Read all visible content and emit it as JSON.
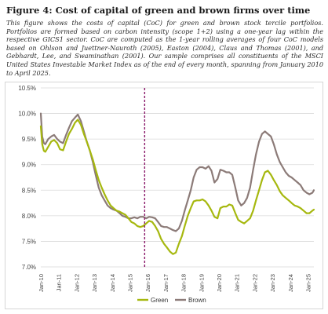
{
  "figure": {
    "title": "Figure 4: Cost of capital of green and brown firms over time",
    "caption": "This figure shows the costs of capital (CoC) for green and brown stock tercile portfolios. Portfolios are formed based on carbon intensity (scope 1+2) using a one-year lag within the respective GICS1 sector. CoC are computed as the 1-year rolling averages of four CoC models based on Ohlson and Juettner-Nauroth (2005), Easton (2004), Claus and Thomas (2001), and Gebhardt, Lee, and Swaminathan (2001). Our sample comprises all constituents of the MSCI United States Investable Market Index as of the end of every month, spanning from January 2010 to April 2025."
  },
  "chart_data": {
    "type": "line",
    "ylim": [
      7.0,
      10.5
    ],
    "yticks": [
      7.0,
      7.5,
      8.0,
      8.5,
      9.0,
      9.5,
      10.0,
      10.5
    ],
    "ytick_labels": [
      "7.0%",
      "7.5%",
      "8.0%",
      "8.5%",
      "9.0%",
      "9.5%",
      "10.0%",
      "10.5%"
    ],
    "xlim": [
      2010.0,
      2025.33
    ],
    "xticks": [
      2010,
      2011,
      2012,
      2013,
      2014,
      2015,
      2016,
      2017,
      2018,
      2019,
      2020,
      2021,
      2022,
      2023,
      2024,
      2025
    ],
    "xtick_labels": [
      "Jan-10",
      "Jan-11",
      "Jan-12",
      "Jan-13",
      "Jan-14",
      "Jan-15",
      "Jan-16",
      "Jan-17",
      "Jan-18",
      "Jan-19",
      "Jan-20",
      "Jan-21",
      "Jan-22",
      "Jan-23",
      "Jan-24",
      "Jan-25"
    ],
    "grid": "horizontal",
    "legend_position": "bottom-center",
    "vline": {
      "x": 2015.83,
      "color": "#8b1a6b",
      "style": "dashed"
    },
    "series": [
      {
        "name": "Green",
        "color": "#a6b80f",
        "x": [
          2010.0,
          2010.08,
          2010.17,
          2010.25,
          2010.42,
          2010.58,
          2010.75,
          2010.92,
          2011.08,
          2011.25,
          2011.42,
          2011.58,
          2011.75,
          2011.92,
          2012.08,
          2012.25,
          2012.42,
          2012.58,
          2012.75,
          2012.92,
          2013.08,
          2013.25,
          2013.42,
          2013.58,
          2013.75,
          2013.92,
          2014.08,
          2014.25,
          2014.42,
          2014.58,
          2014.75,
          2014.92,
          2015.08,
          2015.25,
          2015.42,
          2015.58,
          2015.75,
          2015.92,
          2016.08,
          2016.25,
          2016.42,
          2016.58,
          2016.75,
          2016.92,
          2017.08,
          2017.25,
          2017.42,
          2017.58,
          2017.75,
          2017.92,
          2018.08,
          2018.25,
          2018.42,
          2018.58,
          2018.75,
          2018.92,
          2019.08,
          2019.25,
          2019.42,
          2019.58,
          2019.75,
          2019.92,
          2020.08,
          2020.25,
          2020.42,
          2020.58,
          2020.75,
          2020.92,
          2021.08,
          2021.25,
          2021.42,
          2021.58,
          2021.75,
          2021.92,
          2022.08,
          2022.25,
          2022.42,
          2022.58,
          2022.75,
          2022.92,
          2023.08,
          2023.25,
          2023.42,
          2023.58,
          2023.75,
          2023.92,
          2024.08,
          2024.25,
          2024.42,
          2024.58,
          2024.75,
          2024.92,
          2025.08,
          2025.25,
          2025.33
        ],
        "values": [
          9.75,
          9.4,
          9.27,
          9.25,
          9.35,
          9.45,
          9.48,
          9.42,
          9.3,
          9.28,
          9.45,
          9.6,
          9.7,
          9.82,
          9.88,
          9.78,
          9.6,
          9.45,
          9.28,
          9.1,
          8.9,
          8.7,
          8.55,
          8.42,
          8.3,
          8.2,
          8.15,
          8.1,
          8.08,
          8.05,
          8.02,
          7.95,
          7.88,
          7.85,
          7.8,
          7.78,
          7.8,
          7.85,
          7.9,
          7.88,
          7.8,
          7.7,
          7.55,
          7.45,
          7.38,
          7.3,
          7.25,
          7.28,
          7.45,
          7.6,
          7.8,
          8.0,
          8.15,
          8.28,
          8.3,
          8.3,
          8.32,
          8.28,
          8.2,
          8.1,
          7.98,
          7.95,
          8.15,
          8.18,
          8.18,
          8.22,
          8.2,
          8.05,
          7.92,
          7.88,
          7.85,
          7.9,
          7.95,
          8.1,
          8.3,
          8.5,
          8.7,
          8.85,
          8.88,
          8.8,
          8.7,
          8.6,
          8.48,
          8.4,
          8.35,
          8.3,
          8.25,
          8.2,
          8.18,
          8.15,
          8.1,
          8.05,
          8.05,
          8.1,
          8.12
        ]
      },
      {
        "name": "Brown",
        "color": "#8c7b78",
        "x": [
          2010.0,
          2010.08,
          2010.17,
          2010.25,
          2010.42,
          2010.58,
          2010.75,
          2010.92,
          2011.08,
          2011.25,
          2011.42,
          2011.58,
          2011.75,
          2011.92,
          2012.08,
          2012.25,
          2012.42,
          2012.58,
          2012.75,
          2012.92,
          2013.08,
          2013.25,
          2013.42,
          2013.58,
          2013.75,
          2013.92,
          2014.08,
          2014.25,
          2014.42,
          2014.58,
          2014.75,
          2014.92,
          2015.08,
          2015.25,
          2015.42,
          2015.58,
          2015.75,
          2015.92,
          2016.08,
          2016.25,
          2016.42,
          2016.58,
          2016.75,
          2016.92,
          2017.08,
          2017.25,
          2017.42,
          2017.58,
          2017.75,
          2017.92,
          2018.08,
          2018.25,
          2018.42,
          2018.58,
          2018.75,
          2018.92,
          2019.08,
          2019.25,
          2019.42,
          2019.58,
          2019.75,
          2019.92,
          2020.08,
          2020.25,
          2020.42,
          2020.58,
          2020.75,
          2020.92,
          2021.08,
          2021.25,
          2021.42,
          2021.58,
          2021.75,
          2021.92,
          2022.08,
          2022.25,
          2022.42,
          2022.58,
          2022.75,
          2022.92,
          2023.08,
          2023.25,
          2023.42,
          2023.58,
          2023.75,
          2023.92,
          2024.08,
          2024.25,
          2024.42,
          2024.58,
          2024.75,
          2024.92,
          2025.08,
          2025.25,
          2025.33
        ],
        "values": [
          10.0,
          9.55,
          9.42,
          9.4,
          9.5,
          9.55,
          9.58,
          9.5,
          9.45,
          9.42,
          9.58,
          9.72,
          9.85,
          9.92,
          9.98,
          9.85,
          9.65,
          9.45,
          9.28,
          9.05,
          8.8,
          8.55,
          8.4,
          8.3,
          8.2,
          8.15,
          8.12,
          8.1,
          8.05,
          8.0,
          7.98,
          7.95,
          7.95,
          7.97,
          7.95,
          7.98,
          7.98,
          7.95,
          7.98,
          7.97,
          7.95,
          7.88,
          7.8,
          7.78,
          7.78,
          7.75,
          7.72,
          7.7,
          7.75,
          7.9,
          8.1,
          8.3,
          8.5,
          8.75,
          8.9,
          8.95,
          8.95,
          8.92,
          8.97,
          8.88,
          8.65,
          8.72,
          8.9,
          8.88,
          8.85,
          8.85,
          8.8,
          8.55,
          8.3,
          8.2,
          8.25,
          8.35,
          8.55,
          8.9,
          9.2,
          9.45,
          9.6,
          9.65,
          9.6,
          9.55,
          9.4,
          9.2,
          9.05,
          8.95,
          8.85,
          8.78,
          8.75,
          8.7,
          8.65,
          8.6,
          8.5,
          8.45,
          8.42,
          8.45,
          8.5
        ]
      }
    ]
  }
}
